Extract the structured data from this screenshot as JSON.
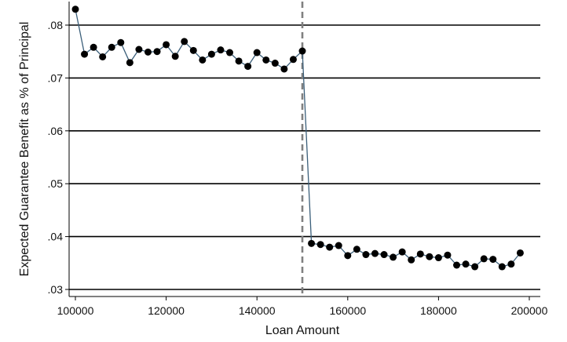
{
  "chart_data": {
    "type": "line",
    "title": "",
    "xlabel": "Loan Amount",
    "ylabel": "Expected Guarantee Benefit as % of Principal",
    "xlim": [
      100000,
      200000
    ],
    "ylim": [
      0.03,
      0.08
    ],
    "x_ticks": [
      100000,
      120000,
      140000,
      160000,
      180000,
      200000
    ],
    "x_tick_labels": [
      "100000",
      "120000",
      "140000",
      "160000",
      "180000",
      "200000"
    ],
    "y_ticks": [
      0.03,
      0.04,
      0.05,
      0.06,
      0.07,
      0.08
    ],
    "y_tick_labels": [
      ".03",
      ".04",
      ".05",
      ".06",
      ".07",
      ".08"
    ],
    "grid": "horizontal",
    "reference_line": {
      "x": 150000,
      "style": "dashed",
      "color": "#808080"
    },
    "line_color": "#3b5f7a",
    "marker_color": "#000000",
    "series": [
      {
        "x": [
          100000,
          102000,
          104000,
          106000,
          108000,
          110000,
          112000,
          114000,
          116000,
          118000,
          120000,
          122000,
          124000,
          126000,
          128000,
          130000,
          132000,
          134000,
          136000,
          138000,
          140000,
          142000,
          144000,
          146000,
          148000,
          150000,
          152000,
          154000,
          156000,
          158000,
          160000,
          162000,
          164000,
          166000,
          168000,
          170000,
          172000,
          174000,
          176000,
          178000,
          180000,
          182000,
          184000,
          186000,
          188000,
          190000,
          192000,
          194000,
          196000,
          198000
        ],
        "y": [
          0.083,
          0.0745,
          0.0758,
          0.074,
          0.0758,
          0.0767,
          0.0729,
          0.0754,
          0.0749,
          0.075,
          0.0763,
          0.0741,
          0.0769,
          0.0752,
          0.0734,
          0.0745,
          0.0753,
          0.0748,
          0.0732,
          0.0722,
          0.0748,
          0.0734,
          0.0728,
          0.0717,
          0.0735,
          0.0751,
          0.0387,
          0.0385,
          0.038,
          0.0383,
          0.0364,
          0.0376,
          0.0366,
          0.0368,
          0.0366,
          0.0361,
          0.0371,
          0.0356,
          0.0367,
          0.0362,
          0.036,
          0.0365,
          0.0346,
          0.0348,
          0.0343,
          0.0358,
          0.0357,
          0.0343,
          0.0348,
          0.0369
        ]
      }
    ]
  }
}
